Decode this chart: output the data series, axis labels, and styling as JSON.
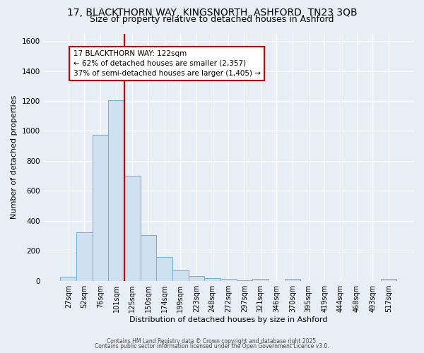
{
  "title_line1": "17, BLACKTHORN WAY, KINGSNORTH, ASHFORD, TN23 3QB",
  "title_line2": "Size of property relative to detached houses in Ashford",
  "xlabel": "Distribution of detached houses by size in Ashford",
  "ylabel": "Number of detached properties",
  "categories": [
    "27sqm",
    "52sqm",
    "76sqm",
    "101sqm",
    "125sqm",
    "150sqm",
    "174sqm",
    "199sqm",
    "223sqm",
    "248sqm",
    "272sqm",
    "297sqm",
    "321sqm",
    "346sqm",
    "370sqm",
    "395sqm",
    "419sqm",
    "444sqm",
    "468sqm",
    "493sqm",
    "517sqm"
  ],
  "values": [
    25,
    325,
    975,
    1205,
    700,
    305,
    160,
    70,
    30,
    15,
    10,
    5,
    10,
    0,
    10,
    0,
    0,
    0,
    0,
    0,
    10
  ],
  "bar_color": "#cfe0f0",
  "bar_edge_color": "#6aafd6",
  "vline_color": "#cc0000",
  "vline_pos": 3.5,
  "annotation_text": "17 BLACKTHORN WAY: 122sqm\n← 62% of detached houses are smaller (2,357)\n37% of semi-detached houses are larger (1,405) →",
  "annotation_box_facecolor": "#ffffff",
  "annotation_box_edgecolor": "#cc0000",
  "ylim": [
    0,
    1650
  ],
  "yticks": [
    0,
    200,
    400,
    600,
    800,
    1000,
    1200,
    1400,
    1600
  ],
  "footer_line1": "Contains HM Land Registry data © Crown copyright and database right 2025.",
  "footer_line2": "Contains public sector information licensed under the Open Government Licence v3.0.",
  "bg_color": "#e8eef5",
  "plot_bg_color": "#e8eef5",
  "grid_color": "#ffffff",
  "title_fontsize": 10,
  "subtitle_fontsize": 9,
  "xlabel_fontsize": 8,
  "ylabel_fontsize": 8,
  "tick_fontsize": 7.5,
  "xtick_fontsize": 7,
  "footer_fontsize": 5.5,
  "annot_fontsize": 7.5
}
